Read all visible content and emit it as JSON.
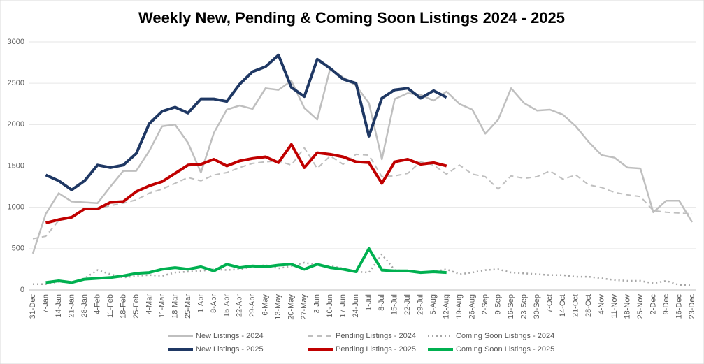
{
  "chart_data": {
    "type": "line",
    "title": "Weekly New, Pending & Coming Soon Listings 2024 - 2025",
    "categories": [
      "31-Dec",
      "7-Jan",
      "14-Jan",
      "21-Jan",
      "28-Jan",
      "4-Feb",
      "11-Feb",
      "18-Feb",
      "25-Feb",
      "4-Mar",
      "11-Mar",
      "18-Mar",
      "25-Mar",
      "1-Apr",
      "8-Apr",
      "15-Apr",
      "22-Apr",
      "29-Apr",
      "6-May",
      "13-May",
      "20-May",
      "27-May",
      "3-Jun",
      "10-Jun",
      "17-Jun",
      "24-Jun",
      "1-Jul",
      "8-Jul",
      "15-Jul",
      "22-Jul",
      "29-Jul",
      "5-Aug",
      "12-Aug",
      "19-Aug",
      "26-Aug",
      "2-Sep",
      "9-Sep",
      "16-Sep",
      "23-Sep",
      "30-Sep",
      "7-Oct",
      "14-Oct",
      "21-Oct",
      "28-Oct",
      "4-Nov",
      "11-Nov",
      "18-Nov",
      "25-Nov",
      "2-Dec",
      "9-Dec",
      "16-Dec",
      "23-Dec"
    ],
    "ylim": [
      0,
      3000
    ],
    "yticks": [
      0,
      500,
      1000,
      1500,
      2000,
      2500,
      3000
    ],
    "grid": true,
    "series": [
      {
        "name": "New Listings - 2024",
        "color": "#bfbfbf",
        "dash": "solid",
        "width": 2.5,
        "values": [
          440,
          920,
          1170,
          1070,
          1060,
          1050,
          1250,
          1440,
          1440,
          1680,
          1980,
          2000,
          1780,
          1420,
          1900,
          2180,
          2230,
          2190,
          2440,
          2420,
          2530,
          2200,
          2060,
          2680,
          2570,
          2470,
          2260,
          1580,
          2310,
          2380,
          2360,
          2290,
          2400,
          2250,
          2180,
          1890,
          2060,
          2440,
          2260,
          2170,
          2180,
          2120,
          1980,
          1790,
          1630,
          1600,
          1480,
          1470,
          940,
          1080,
          1080,
          820
        ]
      },
      {
        "name": "Pending Listings - 2024",
        "color": "#bfbfbf",
        "dash": "dashed",
        "width": 2,
        "values": [
          620,
          650,
          840,
          870,
          980,
          980,
          1020,
          1050,
          1090,
          1170,
          1220,
          1290,
          1360,
          1320,
          1390,
          1420,
          1480,
          1530,
          1550,
          1560,
          1510,
          1720,
          1470,
          1620,
          1520,
          1640,
          1630,
          1370,
          1380,
          1410,
          1550,
          1510,
          1400,
          1510,
          1400,
          1370,
          1220,
          1380,
          1350,
          1370,
          1440,
          1340,
          1390,
          1270,
          1240,
          1180,
          1150,
          1130,
          960,
          940,
          930,
          920
        ]
      },
      {
        "name": "Coming Soon Listings - 2024",
        "color": "#a6a6a6",
        "dash": "dotted",
        "width": 2.5,
        "values": [
          70,
          70,
          100,
          90,
          140,
          240,
          190,
          150,
          170,
          180,
          170,
          210,
          220,
          230,
          250,
          240,
          250,
          280,
          300,
          260,
          290,
          330,
          300,
          290,
          260,
          220,
          210,
          430,
          240,
          230,
          210,
          220,
          250,
          190,
          210,
          240,
          250,
          210,
          200,
          190,
          180,
          180,
          160,
          160,
          140,
          120,
          110,
          110,
          80,
          110,
          60,
          55
        ]
      },
      {
        "name": "New Listings - 2025",
        "color": "#1f3864",
        "dash": "solid",
        "width": 4,
        "values": [
          null,
          1390,
          1320,
          1210,
          1320,
          1510,
          1480,
          1510,
          1650,
          2010,
          2160,
          2210,
          2140,
          2310,
          2310,
          2280,
          2490,
          2640,
          2700,
          2840,
          2450,
          2340,
          2790,
          2680,
          2550,
          2500,
          1860,
          2320,
          2420,
          2440,
          2320,
          2410,
          2330,
          null,
          null,
          null,
          null,
          null,
          null,
          null,
          null,
          null,
          null,
          null,
          null,
          null,
          null,
          null,
          null,
          null,
          null,
          null
        ]
      },
      {
        "name": "Pending Listings - 2025",
        "color": "#c00000",
        "dash": "solid",
        "width": 4,
        "values": [
          null,
          810,
          850,
          880,
          980,
          980,
          1060,
          1070,
          1190,
          1260,
          1310,
          1410,
          1510,
          1520,
          1580,
          1500,
          1560,
          1590,
          1610,
          1540,
          1760,
          1480,
          1660,
          1640,
          1610,
          1550,
          1540,
          1290,
          1550,
          1580,
          1520,
          1540,
          1500,
          null,
          null,
          null,
          null,
          null,
          null,
          null,
          null,
          null,
          null,
          null,
          null,
          null,
          null,
          null,
          null,
          null,
          null,
          null
        ]
      },
      {
        "name": "Coming Soon Listings - 2025",
        "color": "#00b050",
        "dash": "solid",
        "width": 4,
        "values": [
          null,
          90,
          110,
          90,
          130,
          140,
          150,
          170,
          200,
          210,
          250,
          270,
          250,
          280,
          230,
          310,
          270,
          290,
          280,
          300,
          310,
          250,
          310,
          270,
          250,
          220,
          500,
          240,
          230,
          230,
          210,
          220,
          210,
          null,
          null,
          null,
          null,
          null,
          null,
          null,
          null,
          null,
          null,
          null,
          null,
          null,
          null,
          null,
          null,
          null,
          null,
          null
        ]
      }
    ]
  }
}
